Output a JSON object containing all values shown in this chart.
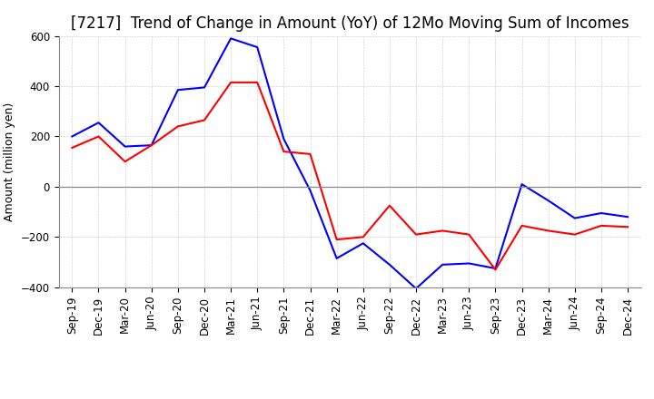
{
  "title": "[7217]  Trend of Change in Amount (YoY) of 12Mo Moving Sum of Incomes",
  "ylabel": "Amount (million yen)",
  "x_labels": [
    "Sep-19",
    "Dec-19",
    "Mar-20",
    "Jun-20",
    "Sep-20",
    "Dec-20",
    "Mar-21",
    "Jun-21",
    "Sep-21",
    "Dec-21",
    "Mar-22",
    "Jun-22",
    "Sep-22",
    "Dec-22",
    "Mar-23",
    "Jun-23",
    "Sep-23",
    "Dec-23",
    "Mar-24",
    "Jun-24",
    "Sep-24",
    "Dec-24"
  ],
  "ordinary_income": [
    200,
    255,
    160,
    165,
    385,
    395,
    590,
    555,
    190,
    -15,
    -285,
    -225,
    -310,
    -405,
    -310,
    -305,
    -325,
    10,
    -55,
    -125,
    -105,
    -120
  ],
  "net_income": [
    155,
    200,
    100,
    165,
    240,
    265,
    415,
    415,
    140,
    130,
    -210,
    -200,
    -75,
    -190,
    -175,
    -190,
    -330,
    -155,
    -175,
    -190,
    -155,
    -160
  ],
  "ylim": [
    -400,
    600
  ],
  "yticks": [
    -400,
    -200,
    0,
    200,
    400,
    600
  ],
  "ordinary_color": "#0000ff",
  "net_color": "#ff0000",
  "background_color": "#ffffff",
  "grid_color": "#999999",
  "zero_line_color": "#888888",
  "title_fontsize": 12,
  "axis_fontsize": 9,
  "tick_fontsize": 8.5,
  "legend_fontsize": 10
}
